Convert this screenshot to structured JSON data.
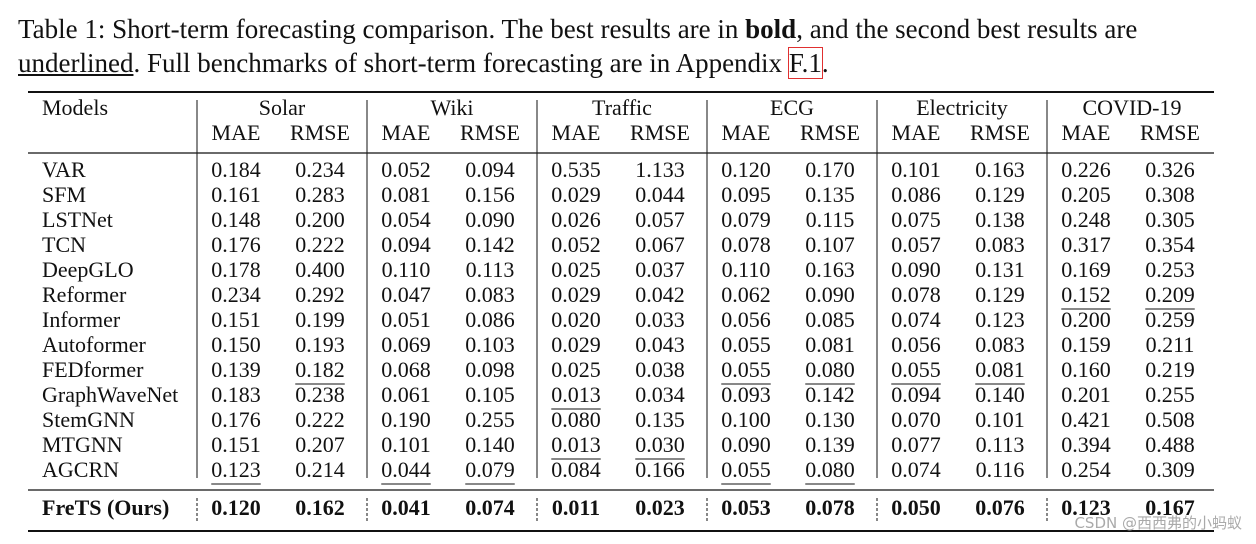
{
  "caption": {
    "prefix": "Table 1: Short-term forecasting comparison. The best results are in ",
    "bold_word": "bold",
    "middle": ", and the second best results are ",
    "underlined_word": "underlined",
    "after": ". Full benchmarks of short-term forecasting are in Appendix ",
    "link": "F.1",
    "end": "."
  },
  "table": {
    "models_header": "Models",
    "datasets": [
      {
        "name": "Solar",
        "metrics": [
          "MAE",
          "RMSE"
        ]
      },
      {
        "name": "Wiki",
        "metrics": [
          "MAE",
          "RMSE"
        ]
      },
      {
        "name": "Traffic",
        "metrics": [
          "MAE",
          "RMSE"
        ]
      },
      {
        "name": "ECG",
        "metrics": [
          "MAE",
          "RMSE"
        ]
      },
      {
        "name": "Electricity",
        "metrics": [
          "MAE",
          "RMSE"
        ]
      },
      {
        "name": "COVID-19",
        "metrics": [
          "MAE",
          "RMSE"
        ]
      }
    ],
    "rows": [
      {
        "model": "VAR",
        "values": [
          "0.184",
          "0.234",
          "0.052",
          "0.094",
          "0.535",
          "1.133",
          "0.120",
          "0.170",
          "0.101",
          "0.163",
          "0.226",
          "0.326"
        ]
      },
      {
        "model": "SFM",
        "values": [
          "0.161",
          "0.283",
          "0.081",
          "0.156",
          "0.029",
          "0.044",
          "0.095",
          "0.135",
          "0.086",
          "0.129",
          "0.205",
          "0.308"
        ]
      },
      {
        "model": "LSTNet",
        "values": [
          "0.148",
          "0.200",
          "0.054",
          "0.090",
          "0.026",
          "0.057",
          "0.079",
          "0.115",
          "0.075",
          "0.138",
          "0.248",
          "0.305"
        ]
      },
      {
        "model": "TCN",
        "values": [
          "0.176",
          "0.222",
          "0.094",
          "0.142",
          "0.052",
          "0.067",
          "0.078",
          "0.107",
          "0.057",
          "0.083",
          "0.317",
          "0.354"
        ]
      },
      {
        "model": "DeepGLO",
        "values": [
          "0.178",
          "0.400",
          "0.110",
          "0.113",
          "0.025",
          "0.037",
          "0.110",
          "0.163",
          "0.090",
          "0.131",
          "0.169",
          "0.253"
        ]
      },
      {
        "model": "Reformer",
        "values": [
          "0.234",
          "0.292",
          "0.047",
          "0.083",
          "0.029",
          "0.042",
          "0.062",
          "0.090",
          "0.078",
          "0.129",
          "0.152",
          "0.209"
        ]
      },
      {
        "model": "Informer",
        "values": [
          "0.151",
          "0.199",
          "0.051",
          "0.086",
          "0.020",
          "0.033",
          "0.056",
          "0.085",
          "0.074",
          "0.123",
          "0.200",
          "0.259"
        ]
      },
      {
        "model": "Autoformer",
        "values": [
          "0.150",
          "0.193",
          "0.069",
          "0.103",
          "0.029",
          "0.043",
          "0.055",
          "0.081",
          "0.056",
          "0.083",
          "0.159",
          "0.211"
        ]
      },
      {
        "model": "FEDformer",
        "values": [
          "0.139",
          "0.182",
          "0.068",
          "0.098",
          "0.025",
          "0.038",
          "0.055",
          "0.080",
          "0.055",
          "0.081",
          "0.160",
          "0.219"
        ]
      },
      {
        "model": "GraphWaveNet",
        "values": [
          "0.183",
          "0.238",
          "0.061",
          "0.105",
          "0.013",
          "0.034",
          "0.093",
          "0.142",
          "0.094",
          "0.140",
          "0.201",
          "0.255"
        ]
      },
      {
        "model": "StemGNN",
        "values": [
          "0.176",
          "0.222",
          "0.190",
          "0.255",
          "0.080",
          "0.135",
          "0.100",
          "0.130",
          "0.070",
          "0.101",
          "0.421",
          "0.508"
        ]
      },
      {
        "model": "MTGNN",
        "values": [
          "0.151",
          "0.207",
          "0.101",
          "0.140",
          "0.013",
          "0.030",
          "0.090",
          "0.139",
          "0.077",
          "0.113",
          "0.394",
          "0.488"
        ]
      },
      {
        "model": "AGCRN",
        "values": [
          "0.123",
          "0.214",
          "0.044",
          "0.079",
          "0.084",
          "0.166",
          "0.055",
          "0.080",
          "0.074",
          "0.116",
          "0.254",
          "0.309"
        ]
      }
    ],
    "underlined": [
      [
        5,
        10
      ],
      [
        5,
        11
      ],
      [
        8,
        1
      ],
      [
        8,
        6
      ],
      [
        8,
        7
      ],
      [
        8,
        8
      ],
      [
        8,
        9
      ],
      [
        9,
        4
      ],
      [
        11,
        4
      ],
      [
        11,
        5
      ],
      [
        12,
        0
      ],
      [
        12,
        2
      ],
      [
        12,
        3
      ],
      [
        12,
        6
      ],
      [
        12,
        7
      ]
    ],
    "best_row": {
      "model": "FreTS (Ours)",
      "values": [
        "0.120",
        "0.162",
        "0.041",
        "0.074",
        "0.011",
        "0.023",
        "0.053",
        "0.078",
        "0.050",
        "0.076",
        "0.123",
        "0.167"
      ]
    }
  },
  "watermark": "CSDN @西西弗的小蚂蚁"
}
